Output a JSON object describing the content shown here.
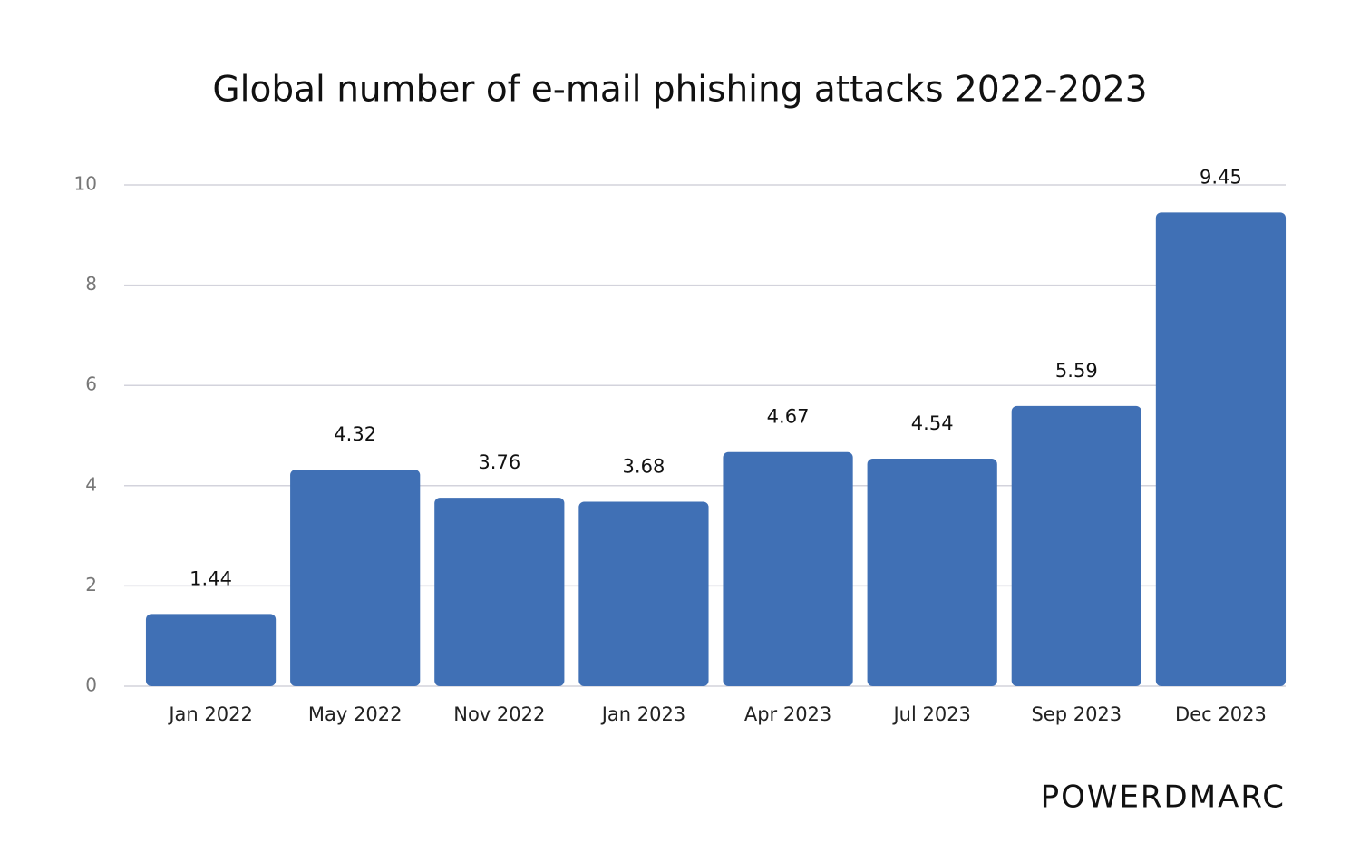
{
  "chart_data": {
    "type": "bar",
    "title": "Global number of e-mail phishing attacks 2022-2023",
    "categories": [
      "Jan 2022",
      "May 2022",
      "Nov 2022",
      "Jan 2023",
      "Apr 2023",
      "Jul 2023",
      "Sep 2023",
      "Dec 2023"
    ],
    "values": [
      1.44,
      4.32,
      3.76,
      3.68,
      4.67,
      4.54,
      5.59,
      9.45
    ],
    "color": "#4070b5",
    "ylim": [
      0,
      10
    ],
    "yticks": [
      0,
      2,
      4,
      6,
      8,
      10
    ],
    "grid": true
  },
  "logo": "POWERDMARC"
}
